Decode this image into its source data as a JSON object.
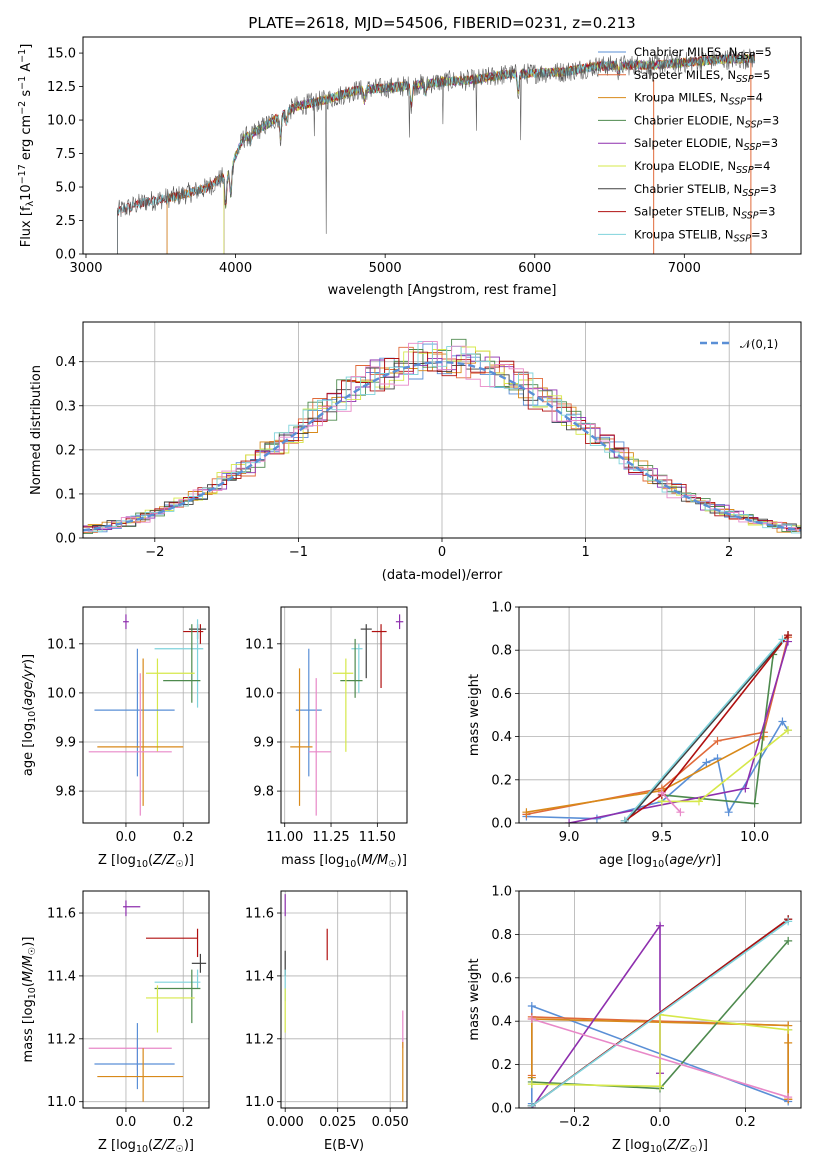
{
  "chart_data": [
    {
      "id": "spectrum",
      "type": "line",
      "title": "PLATE=2618, MJD=54506, FIBERID=0231, z=0.213",
      "xlabel": "wavelength [Angstrom, rest frame]",
      "ylabel": "Flux [f_λ 10^-17 erg cm^-2 s^-1 A^-1]",
      "xlim": [
        2980,
        7780
      ],
      "ylim": [
        0,
        16.2
      ],
      "xticks": [
        3000,
        4000,
        5000,
        6000,
        7000
      ],
      "yticks": [
        0.0,
        2.5,
        5.0,
        7.5,
        10.0,
        12.5,
        15.0
      ],
      "grid": false,
      "legend": "top-right",
      "data_wavelength_range": [
        3210,
        7470
      ],
      "data_flux_range": [
        0,
        15.2
      ],
      "continuum_knots": {
        "x": [
          3210,
          3400,
          3600,
          3800,
          3950,
          4050,
          4200,
          4400,
          4600,
          4800,
          5000,
          5200,
          5400,
          5600,
          5800,
          6000,
          6200,
          6400,
          6600,
          6800,
          7000,
          7200,
          7470
        ],
        "y": [
          3.2,
          3.9,
          4.3,
          4.9,
          6.0,
          8.6,
          9.6,
          11.0,
          11.5,
          12.2,
          12.4,
          12.6,
          12.9,
          13.0,
          13.4,
          13.5,
          13.6,
          14.0,
          14.1,
          14.1,
          14.3,
          14.5,
          14.6
        ]
      },
      "series": [
        {
          "name": "Chabrier MILES, N_SSP=5",
          "color": "#5a8fd6",
          "start": 3540
        },
        {
          "name": "Salpeter MILES, N_SSP=5",
          "color": "#e06a3a",
          "start": 3540
        },
        {
          "name": "Kroupa MILES, N_SSP=4",
          "color": "#d8891a",
          "start": 3540
        },
        {
          "name": "Chabrier ELODIE, N_SSP=3",
          "color": "#4e8a4e",
          "start": 3920
        },
        {
          "name": "Salpeter ELODIE, N_SSP=3",
          "color": "#8e2fae",
          "start": 3920
        },
        {
          "name": "Kroupa ELODIE, N_SSP=4",
          "color": "#d6e84a",
          "start": 3920
        },
        {
          "name": "Chabrier STELIB, N_SSP=3",
          "color": "#404040",
          "start": 3210
        },
        {
          "name": "Salpeter STELIB, N_SSP=3",
          "color": "#b01010",
          "start": 3210
        },
        {
          "name": "Kroupa STELIB, N_SSP=3",
          "color": "#7fd3dc",
          "start": 3210
        }
      ],
      "legend_entries": [
        {
          "base": "Chabrier MILES, N",
          "sub": "SSP",
          "tail": "=5",
          "color": "#5a8fd6"
        },
        {
          "base": "Salpeter MILES, N",
          "sub": "SSP",
          "tail": "=5",
          "color": "#e06a3a"
        },
        {
          "base": "Kroupa MILES, N",
          "sub": "SSP",
          "tail": "=4",
          "color": "#d8891a"
        },
        {
          "base": "Chabrier ELODIE, N",
          "sub": "SSP",
          "tail": "=3",
          "color": "#4e8a4e"
        },
        {
          "base": "Salpeter ELODIE, N",
          "sub": "SSP",
          "tail": "=3",
          "color": "#8e2fae"
        },
        {
          "base": "Kroupa ELODIE, N",
          "sub": "SSP",
          "tail": "=4",
          "color": "#d6e84a"
        },
        {
          "base": "Chabrier STELIB, N",
          "sub": "SSP",
          "tail": "=3",
          "color": "#404040"
        },
        {
          "base": "Salpeter STELIB, N",
          "sub": "SSP",
          "tail": "=3",
          "color": "#b01010"
        },
        {
          "base": "Kroupa STELIB, N",
          "sub": "SSP",
          "tail": "=3",
          "color": "#7fd3dc"
        }
      ]
    },
    {
      "id": "residuals",
      "type": "histogram",
      "xlabel": "(data-model)/error",
      "ylabel": "Normed distribution",
      "xlim": [
        -2.5,
        2.5
      ],
      "ylim": [
        0,
        0.49
      ],
      "xticks": [
        -2,
        -1,
        0,
        1,
        2
      ],
      "xtick_labels": [
        "−2",
        "−1",
        "0",
        "1",
        "2"
      ],
      "yticks": [
        0.0,
        0.1,
        0.2,
        0.3,
        0.4
      ],
      "grid": true,
      "legend": "top-right",
      "reference_curve": {
        "name": "𝒩(0,1)",
        "color": "#5a8fd6",
        "style": "dashed"
      },
      "bin_width": 0.1,
      "series_colors": [
        "#5a8fd6",
        "#e06a3a",
        "#d8891a",
        "#4e8a4e",
        "#8e2fae",
        "#d6e84a",
        "#404040",
        "#b01010",
        "#7fd3dc",
        "#e888c8"
      ]
    },
    {
      "id": "age-vs-Z",
      "type": "errorbar",
      "xlabel": "Z [log10(Z/Z☉)]",
      "ylabel": "age  [log10(age/yr)]",
      "xlim": [
        -0.15,
        0.29
      ],
      "ylim": [
        9.735,
        10.175
      ],
      "xticks": [
        0.0,
        0.2
      ],
      "yticks": [
        9.8,
        9.9,
        10.0,
        10.1
      ],
      "grid": true,
      "points": [
        {
          "x": 0.0,
          "y": 10.145,
          "xlo": -0.01,
          "xhi": 0.01,
          "ylo": 10.13,
          "yhi": 10.16,
          "color": "#8e2fae"
        },
        {
          "x": 0.26,
          "y": 10.125,
          "xlo": 0.2,
          "xhi": 0.27,
          "ylo": 10.1,
          "yhi": 10.14,
          "color": "#b01010"
        },
        {
          "x": 0.25,
          "y": 10.13,
          "xlo": 0.22,
          "xhi": 0.28,
          "ylo": 10.11,
          "yhi": 10.14,
          "color": "#404040"
        },
        {
          "x": 0.25,
          "y": 10.09,
          "xlo": 0.1,
          "xhi": 0.27,
          "ylo": 9.97,
          "yhi": 10.15,
          "color": "#7fd3dc"
        },
        {
          "x": 0.23,
          "y": 10.025,
          "xlo": 0.13,
          "xhi": 0.26,
          "ylo": 9.98,
          "yhi": 10.14,
          "color": "#4e8a4e"
        },
        {
          "x": 0.11,
          "y": 10.04,
          "xlo": 0.07,
          "xhi": 0.24,
          "ylo": 9.88,
          "yhi": 10.07,
          "color": "#d6e84a"
        },
        {
          "x": 0.04,
          "y": 9.965,
          "xlo": -0.11,
          "xhi": 0.17,
          "ylo": 9.83,
          "yhi": 10.09,
          "color": "#5a8fd6"
        },
        {
          "x": 0.06,
          "y": 9.89,
          "xlo": -0.1,
          "xhi": 0.2,
          "ylo": 9.77,
          "yhi": 10.07,
          "color": "#d8891a"
        },
        {
          "x": 0.05,
          "y": 9.88,
          "xlo": -0.13,
          "xhi": 0.16,
          "ylo": 9.75,
          "yhi": 10.04,
          "color": "#e888c8"
        }
      ]
    },
    {
      "id": "age-vs-mass",
      "type": "errorbar",
      "xlabel": "mass [log10(M/M☉)]",
      "ylabel": "",
      "xlim": [
        10.98,
        11.66
      ],
      "ylim": [
        9.735,
        10.175
      ],
      "xticks": [
        11.0,
        11.25,
        11.5
      ],
      "xtick_labels": [
        "11.00",
        "11.25",
        "11.50"
      ],
      "yticks": [
        9.8,
        9.9,
        10.0,
        10.1
      ],
      "grid": true,
      "points": [
        {
          "x": 11.62,
          "y": 10.145,
          "xlo": 11.6,
          "xhi": 11.64,
          "ylo": 10.13,
          "yhi": 10.16,
          "color": "#8e2fae"
        },
        {
          "x": 11.52,
          "y": 10.125,
          "xlo": 11.47,
          "xhi": 11.55,
          "ylo": 10.01,
          "yhi": 10.14,
          "color": "#b01010"
        },
        {
          "x": 11.44,
          "y": 10.13,
          "xlo": 11.41,
          "xhi": 11.47,
          "ylo": 10.03,
          "yhi": 10.14,
          "color": "#404040"
        },
        {
          "x": 11.4,
          "y": 10.09,
          "xlo": 11.36,
          "xhi": 11.42,
          "ylo": 10.0,
          "yhi": 10.1,
          "color": "#7fd3dc"
        },
        {
          "x": 11.38,
          "y": 10.025,
          "xlo": 11.3,
          "xhi": 11.42,
          "ylo": 9.99,
          "yhi": 10.11,
          "color": "#4e8a4e"
        },
        {
          "x": 11.33,
          "y": 10.04,
          "xlo": 11.26,
          "xhi": 11.37,
          "ylo": 9.88,
          "yhi": 10.07,
          "color": "#d6e84a"
        },
        {
          "x": 11.13,
          "y": 9.965,
          "xlo": 11.06,
          "xhi": 11.2,
          "ylo": 9.83,
          "yhi": 10.09,
          "color": "#5a8fd6"
        },
        {
          "x": 11.08,
          "y": 9.89,
          "xlo": 11.03,
          "xhi": 11.15,
          "ylo": 9.77,
          "yhi": 10.05,
          "color": "#d8891a"
        },
        {
          "x": 11.17,
          "y": 9.88,
          "xlo": 11.13,
          "xhi": 11.25,
          "ylo": 9.75,
          "yhi": 10.03,
          "color": "#e888c8"
        }
      ]
    },
    {
      "id": "massweight-vs-age",
      "type": "line",
      "xlabel": "age  [log10(age/yr)]",
      "ylabel": "mass weight",
      "xlim": [
        8.73,
        10.25
      ],
      "ylim": [
        0.0,
        1.0
      ],
      "xticks": [
        9.0,
        9.5,
        10.0
      ],
      "yticks": [
        0.0,
        0.2,
        0.4,
        0.6,
        0.8,
        1.0
      ],
      "grid": true,
      "series": [
        {
          "color": "#5a8fd6",
          "x": [
            8.77,
            9.15,
            9.5,
            9.74,
            9.8,
            9.86,
            10.15,
            10.18
          ],
          "y": [
            0.03,
            0.02,
            0.1,
            0.28,
            0.3,
            0.05,
            0.47,
            0.43
          ]
        },
        {
          "color": "#e06a3a",
          "x": [
            8.77,
            9.5,
            9.8,
            10.05,
            10.18
          ],
          "y": [
            0.04,
            0.16,
            0.38,
            0.42,
            0.86
          ]
        },
        {
          "color": "#d8891a",
          "x": [
            8.77,
            9.5,
            10.05
          ],
          "y": [
            0.05,
            0.15,
            0.4
          ]
        },
        {
          "color": "#4e8a4e",
          "x": [
            9.5,
            10.0,
            10.1,
            10.18
          ],
          "y": [
            0.13,
            0.09,
            0.78,
            0.87
          ]
        },
        {
          "color": "#8e2fae",
          "x": [
            9.0,
            9.95,
            10.18
          ],
          "y": [
            0.0,
            0.16,
            0.84
          ]
        },
        {
          "color": "#d6e84a",
          "x": [
            9.5,
            9.7,
            10.18
          ],
          "y": [
            0.1,
            0.1,
            0.43
          ]
        },
        {
          "color": "#404040",
          "x": [
            9.3,
            10.18
          ],
          "y": [
            0.0,
            0.87
          ]
        },
        {
          "color": "#b01010",
          "x": [
            9.3,
            9.5,
            10.18
          ],
          "y": [
            0.01,
            0.13,
            0.87
          ]
        },
        {
          "color": "#7fd3dc",
          "x": [
            9.3,
            10.15
          ],
          "y": [
            0.01,
            0.85
          ]
        },
        {
          "color": "#e888c8",
          "x": [
            9.6,
            9.5
          ],
          "y": [
            0.05,
            0.14
          ]
        }
      ]
    },
    {
      "id": "mass-vs-Z",
      "type": "errorbar",
      "xlabel": "Z [log10(Z/Z☉)]",
      "ylabel": "mass [log10(M/M☉)]",
      "xlim": [
        -0.15,
        0.29
      ],
      "ylim": [
        10.98,
        11.67
      ],
      "xticks": [
        0.0,
        0.2
      ],
      "yticks": [
        11.0,
        11.2,
        11.4,
        11.6
      ],
      "grid": true,
      "points": [
        {
          "x": 0.0,
          "y": 11.62,
          "xlo": -0.01,
          "xhi": 0.05,
          "ylo": 11.59,
          "yhi": 11.64,
          "color": "#8e2fae"
        },
        {
          "x": 0.25,
          "y": 11.52,
          "xlo": 0.07,
          "xhi": 0.25,
          "ylo": 11.46,
          "yhi": 11.55,
          "color": "#b01010"
        },
        {
          "x": 0.26,
          "y": 11.44,
          "xlo": 0.23,
          "xhi": 0.28,
          "ylo": 11.41,
          "yhi": 11.47,
          "color": "#404040"
        },
        {
          "x": 0.25,
          "y": 11.38,
          "xlo": 0.1,
          "xhi": 0.26,
          "ylo": 11.36,
          "yhi": 11.42,
          "color": "#7fd3dc"
        },
        {
          "x": 0.23,
          "y": 11.36,
          "xlo": 0.1,
          "xhi": 0.26,
          "ylo": 11.25,
          "yhi": 11.42,
          "color": "#4e8a4e"
        },
        {
          "x": 0.11,
          "y": 11.33,
          "xlo": 0.07,
          "xhi": 0.24,
          "ylo": 11.22,
          "yhi": 11.37,
          "color": "#d6e84a"
        },
        {
          "x": 0.04,
          "y": 11.17,
          "xlo": -0.13,
          "xhi": 0.16,
          "ylo": 11.1,
          "yhi": 11.2,
          "color": "#e888c8"
        },
        {
          "x": 0.04,
          "y": 11.12,
          "xlo": -0.11,
          "xhi": 0.17,
          "ylo": 11.04,
          "yhi": 11.25,
          "color": "#5a8fd6"
        },
        {
          "x": 0.06,
          "y": 11.08,
          "xlo": -0.1,
          "xhi": 0.2,
          "ylo": 11.0,
          "yhi": 11.17,
          "color": "#d8891a"
        }
      ]
    },
    {
      "id": "mass-vs-EBV",
      "type": "errorbar",
      "xlabel": "E(B-V)",
      "ylabel": "",
      "xlim": [
        -0.002,
        0.058
      ],
      "ylim": [
        10.98,
        11.67
      ],
      "xticks": [
        0.0,
        0.025,
        0.05
      ],
      "xtick_labels": [
        "0.000",
        "0.025",
        "0.050"
      ],
      "yticks": [
        11.0,
        11.2,
        11.4,
        11.6
      ],
      "grid": true,
      "points": [
        {
          "x": 0.0,
          "y": 11.62,
          "ylo": 11.59,
          "yhi": 11.66,
          "color": "#8e2fae"
        },
        {
          "x": 0.02,
          "y": 11.52,
          "ylo": 11.45,
          "yhi": 11.55,
          "color": "#b01010"
        },
        {
          "x": 0.0,
          "y": 11.44,
          "ylo": 11.4,
          "yhi": 11.48,
          "color": "#404040"
        },
        {
          "x": 0.0,
          "y": 11.38,
          "ylo": 11.32,
          "yhi": 11.42,
          "color": "#7fd3dc"
        },
        {
          "x": 0.0,
          "y": 11.33,
          "ylo": 11.22,
          "yhi": 11.36,
          "color": "#d6e84a"
        },
        {
          "x": 0.056,
          "y": 11.22,
          "ylo": 11.17,
          "yhi": 11.29,
          "color": "#e888c8"
        },
        {
          "x": 0.056,
          "y": 11.09,
          "ylo": 11.0,
          "yhi": 11.19,
          "color": "#d8891a"
        }
      ]
    },
    {
      "id": "massweight-vs-Z",
      "type": "line",
      "xlabel": "Z [log10(Z/Z☉)]",
      "ylabel": "mass weight",
      "xlim": [
        -0.33,
        0.33
      ],
      "ylim": [
        0.0,
        1.0
      ],
      "xticks": [
        -0.2,
        0.0,
        0.2
      ],
      "xtick_labels": [
        "−0.2",
        "0.0",
        "0.2"
      ],
      "yticks": [
        0.0,
        0.2,
        0.4,
        0.6,
        0.8,
        1.0
      ],
      "grid": true,
      "series": [
        {
          "color": "#5a8fd6",
          "x": [
            -0.3,
            -0.3,
            0.3,
            0.3
          ],
          "y": [
            0.02,
            0.47,
            0.03,
            0.36
          ]
        },
        {
          "color": "#e06a3a",
          "x": [
            -0.3,
            -0.3,
            0.3,
            0.3,
            0.3
          ],
          "y": [
            0.15,
            0.42,
            0.38,
            0.04,
            0.04
          ]
        },
        {
          "color": "#d8891a",
          "x": [
            -0.3,
            -0.3,
            0.3,
            0.3,
            0.3
          ],
          "y": [
            0.14,
            0.41,
            0.38,
            0.3,
            0.04
          ]
        },
        {
          "color": "#4e8a4e",
          "x": [
            -0.3,
            0.0,
            0.3
          ],
          "y": [
            0.12,
            0.09,
            0.77
          ]
        },
        {
          "color": "#8e2fae",
          "x": [
            -0.3,
            0.0,
            0.0
          ],
          "y": [
            0.0,
            0.84,
            0.16
          ]
        },
        {
          "color": "#d6e84a",
          "x": [
            -0.3,
            0.0,
            0.0,
            0.3
          ],
          "y": [
            0.11,
            0.1,
            0.43,
            0.36
          ]
        },
        {
          "color": "#404040",
          "x": [
            -0.3,
            0.3
          ],
          "y": [
            0.01,
            0.87
          ]
        },
        {
          "color": "#b01010",
          "x": [
            -0.3,
            0.3
          ],
          "y": [
            0.01,
            0.87
          ]
        },
        {
          "color": "#7fd3dc",
          "x": [
            -0.3,
            0.3
          ],
          "y": [
            0.01,
            0.86
          ]
        },
        {
          "color": "#e888c8",
          "x": [
            -0.3,
            0.3
          ],
          "y": [
            0.41,
            0.05
          ]
        }
      ]
    }
  ]
}
